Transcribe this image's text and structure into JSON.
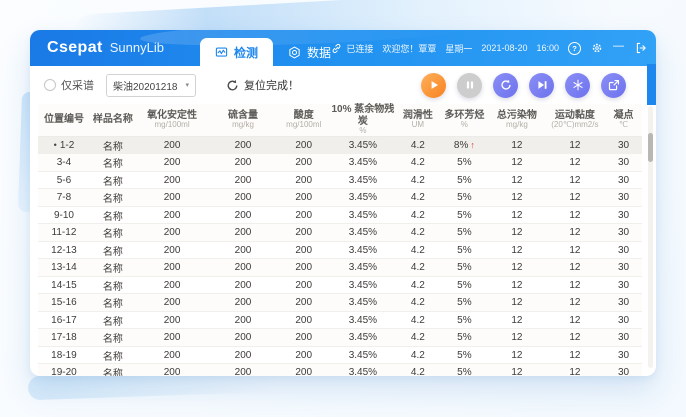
{
  "window": {
    "brand": "Csepat",
    "product": "SunnyLib",
    "controls": {
      "help": "?",
      "minimize": "—"
    }
  },
  "tabs": [
    {
      "label": "检测",
      "active": true
    },
    {
      "label": "数据",
      "active": false
    }
  ],
  "status_bar": {
    "connection_label": "已连接",
    "welcome_text": "欢迎您！覃覃",
    "weekday": "星期一",
    "date": "2021-08-20",
    "time": "16:00"
  },
  "toolbar": {
    "capture_only_label": "仅采谱",
    "method_selected": "柴油20201218",
    "dropdown_arrow": "▾",
    "reset_status": "复位完成！"
  },
  "actions": [
    {
      "id": "start",
      "icon": "play",
      "style": "orange"
    },
    {
      "id": "pause",
      "icon": "pause",
      "style": "gray"
    },
    {
      "id": "resync",
      "icon": "sync",
      "style": "purple"
    },
    {
      "id": "skip",
      "icon": "skip",
      "style": "purple"
    },
    {
      "id": "freeze",
      "icon": "snowflake",
      "style": "purple"
    },
    {
      "id": "export",
      "icon": "export",
      "style": "purple"
    }
  ],
  "table": {
    "selected_marker": "•",
    "alert_symbol": "↑",
    "alert_color": "#e23b2e",
    "columns": [
      {
        "label": "位置编号",
        "unit": "",
        "width": 8.6
      },
      {
        "label": "样品名称",
        "unit": "",
        "width": 7.6
      },
      {
        "label": "氧化安定性",
        "unit": "mg/100ml",
        "width": 12.0
      },
      {
        "label": "硫含量",
        "unit": "mg/kg",
        "width": 11.5
      },
      {
        "label": "酸度",
        "unit": "mg/100ml",
        "width": 8.6
      },
      {
        "label": "10% 蒸余物残炭",
        "unit": "%",
        "width": 11.0
      },
      {
        "label": "润滑性",
        "unit": "UM",
        "width": 7.2
      },
      {
        "label": "多环芳烃",
        "unit": "%",
        "width": 8.2
      },
      {
        "label": "总污染物",
        "unit": "mg/kg",
        "width": 9.2
      },
      {
        "label": "运动黏度",
        "unit": "(20℃)mm2/s",
        "width": 10.0
      },
      {
        "label": "凝点",
        "unit": "℃",
        "width": 6.1
      }
    ],
    "rows": [
      {
        "position": "1-2",
        "name": "名称",
        "values": [
          "200",
          "200",
          "200",
          "3.45%",
          "4.2",
          "8%",
          "12",
          "12",
          "30"
        ],
        "selected": true,
        "alert_col": 5
      },
      {
        "position": "3-4",
        "name": "名称",
        "values": [
          "200",
          "200",
          "200",
          "3.45%",
          "4.2",
          "5%",
          "12",
          "12",
          "30"
        ]
      },
      {
        "position": "5-6",
        "name": "名称",
        "values": [
          "200",
          "200",
          "200",
          "3.45%",
          "4.2",
          "5%",
          "12",
          "12",
          "30"
        ]
      },
      {
        "position": "7-8",
        "name": "名称",
        "values": [
          "200",
          "200",
          "200",
          "3.45%",
          "4.2",
          "5%",
          "12",
          "12",
          "30"
        ]
      },
      {
        "position": "9-10",
        "name": "名称",
        "values": [
          "200",
          "200",
          "200",
          "3.45%",
          "4.2",
          "5%",
          "12",
          "12",
          "30"
        ]
      },
      {
        "position": "11-12",
        "name": "名称",
        "values": [
          "200",
          "200",
          "200",
          "3.45%",
          "4.2",
          "5%",
          "12",
          "12",
          "30"
        ]
      },
      {
        "position": "12-13",
        "name": "名称",
        "values": [
          "200",
          "200",
          "200",
          "3.45%",
          "4.2",
          "5%",
          "12",
          "12",
          "30"
        ]
      },
      {
        "position": "13-14",
        "name": "名称",
        "values": [
          "200",
          "200",
          "200",
          "3.45%",
          "4.2",
          "5%",
          "12",
          "12",
          "30"
        ]
      },
      {
        "position": "14-15",
        "name": "名称",
        "values": [
          "200",
          "200",
          "200",
          "3.45%",
          "4.2",
          "5%",
          "12",
          "12",
          "30"
        ]
      },
      {
        "position": "15-16",
        "name": "名称",
        "values": [
          "200",
          "200",
          "200",
          "3.45%",
          "4.2",
          "5%",
          "12",
          "12",
          "30"
        ]
      },
      {
        "position": "16-17",
        "name": "名称",
        "values": [
          "200",
          "200",
          "200",
          "3.45%",
          "4.2",
          "5%",
          "12",
          "12",
          "30"
        ]
      },
      {
        "position": "17-18",
        "name": "名称",
        "values": [
          "200",
          "200",
          "200",
          "3.45%",
          "4.2",
          "5%",
          "12",
          "12",
          "30"
        ]
      },
      {
        "position": "18-19",
        "name": "名称",
        "values": [
          "200",
          "200",
          "200",
          "3.45%",
          "4.2",
          "5%",
          "12",
          "12",
          "30"
        ]
      },
      {
        "position": "19-20",
        "name": "名称",
        "values": [
          "200",
          "200",
          "200",
          "3.45%",
          "4.2",
          "5%",
          "12",
          "12",
          "30"
        ]
      }
    ]
  },
  "colors": {
    "accent_blue": "#1e87ee",
    "button_orange": "#f8831d",
    "button_purple": "#7277ef",
    "button_gray": "#cdcdcd",
    "alert_red": "#e23b2e",
    "selected_row": "#f1efec"
  }
}
